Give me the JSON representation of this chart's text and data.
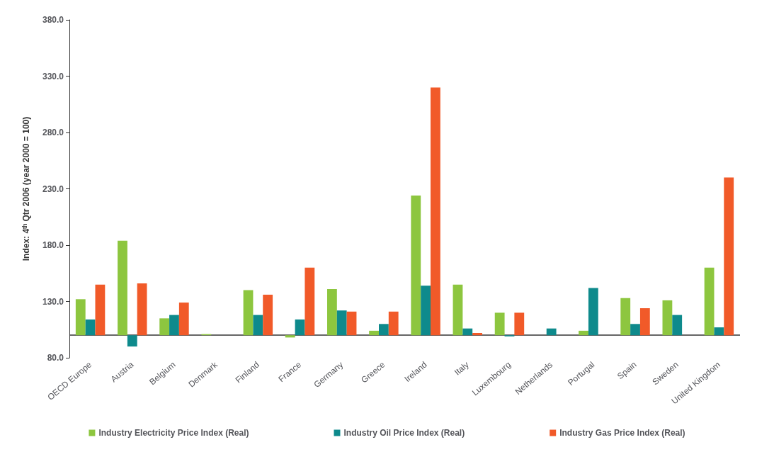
{
  "chart_data": {
    "type": "bar",
    "ylabel": "Index: 4ᵗʰ Qtr 2006 (year 2000 = 100)",
    "categories": [
      "OECD Europe",
      "Austria",
      "Belgium",
      "Denmark",
      "Finland",
      "France",
      "Germany",
      "Greece",
      "Ireland",
      "Italy",
      "Luxembourg",
      "Netherlands",
      "Portugal",
      "Spain",
      "Sweden",
      "United Kingdom"
    ],
    "series": [
      {
        "name": "Industry Electricity Price Index (Real)",
        "color": "#8dc63f",
        "base": [
          100,
          100,
          100,
          100,
          100,
          100,
          100,
          100,
          100,
          100,
          100,
          null,
          100,
          100,
          100,
          100
        ],
        "values": [
          32,
          84,
          15,
          1,
          40,
          -2,
          41,
          4,
          124,
          45,
          20,
          null,
          4,
          33,
          31,
          60
        ]
      },
      {
        "name": "Industry Oil Price Index (Real)",
        "color": "#0e8a8c",
        "base": [
          100,
          100,
          100,
          null,
          100,
          100,
          100,
          100,
          100,
          100,
          100,
          100,
          100,
          100,
          100,
          100
        ],
        "values": [
          14,
          -10,
          18,
          null,
          18,
          14,
          22,
          10,
          44,
          6,
          -1,
          6,
          42,
          10,
          18,
          7
        ]
      },
      {
        "name": "Industry Gas Price Index (Real)",
        "color": "#f15a29",
        "base": [
          100,
          100,
          100,
          null,
          100,
          100,
          100,
          100,
          100,
          100,
          100,
          null,
          null,
          100,
          null,
          100
        ],
        "values": [
          45,
          46,
          29,
          null,
          36,
          60,
          21,
          21,
          220,
          2,
          20,
          null,
          null,
          24,
          null,
          140
        ]
      }
    ],
    "ylim": [
      80,
      380
    ],
    "yticks": [
      {
        "value": 80,
        "label": "80.0"
      },
      {
        "value": 130,
        "label": "130.0"
      },
      {
        "value": 180,
        "label": "180.0"
      },
      {
        "value": 230,
        "label": "230.0"
      },
      {
        "value": 280,
        "label": "280.0"
      },
      {
        "value": 330,
        "label": "330.0"
      },
      {
        "value": 380,
        "label": "380.0"
      }
    ],
    "ref_lines": [
      {
        "axis": "y",
        "value": 100,
        "color": "#333333"
      }
    ],
    "grid": false,
    "legend": "bottom"
  }
}
